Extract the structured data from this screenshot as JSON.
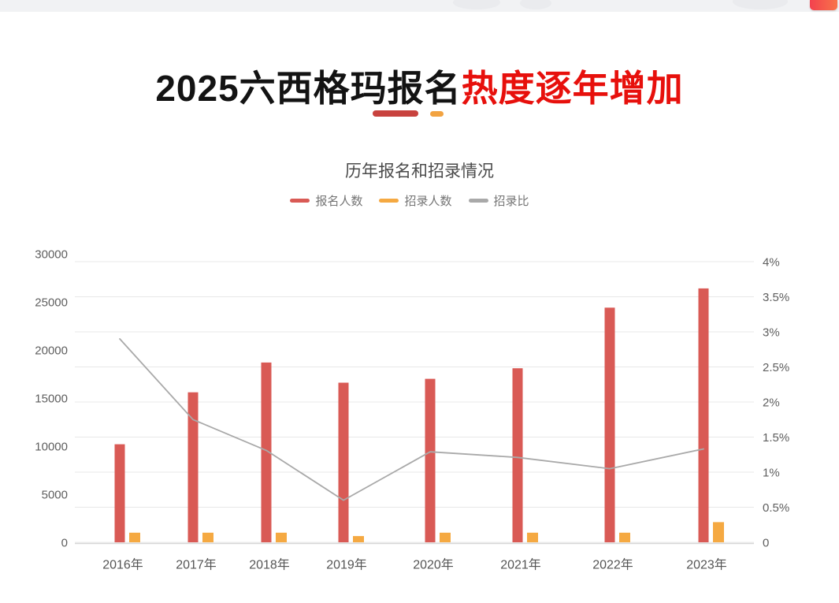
{
  "header": {
    "title_black": "2025六西格玛报名",
    "title_red": "热度逐年增加"
  },
  "chart_data": {
    "type": "bar",
    "title": "历年报名和招录情况",
    "categories": [
      "2016年",
      "2017年",
      "2018年",
      "2019年",
      "2020年",
      "2021年",
      "2022年",
      "2023年"
    ],
    "series": [
      {
        "name": "报名人数",
        "type": "bar",
        "axis": "left",
        "color": "#d95a55",
        "values": [
          10200,
          15600,
          18700,
          16600,
          17000,
          18100,
          24400,
          26400
        ]
      },
      {
        "name": "招录人数",
        "type": "bar",
        "axis": "left",
        "color": "#f5a942",
        "values": [
          1000,
          1000,
          1000,
          650,
          1000,
          1000,
          1000,
          2100
        ]
      },
      {
        "name": "招录比",
        "type": "line",
        "axis": "right",
        "color": "#a9a9a9",
        "values": [
          2.9,
          1.75,
          1.31,
          0.6,
          1.29,
          1.21,
          1.05,
          1.33
        ]
      }
    ],
    "left_axis": {
      "min": 0,
      "max": 30000,
      "interval": 5000,
      "tick_labels": [
        "30000",
        "25000",
        "20000",
        "15000",
        "10000",
        "5000",
        "0"
      ]
    },
    "right_axis": {
      "min": 0,
      "max": 4,
      "interval": 0.5,
      "unit": "%",
      "tick_labels": [
        "4%",
        "3.5%",
        "3%",
        "2.5%",
        "2%",
        "1.5%",
        "1%",
        "0.5%",
        "0"
      ]
    },
    "grid": true,
    "legend_position": "top",
    "colors": {
      "grid_line": "#e8e8e8",
      "axis_line": "#d8d8d8",
      "axis_text": "#5e5e5e"
    }
  }
}
